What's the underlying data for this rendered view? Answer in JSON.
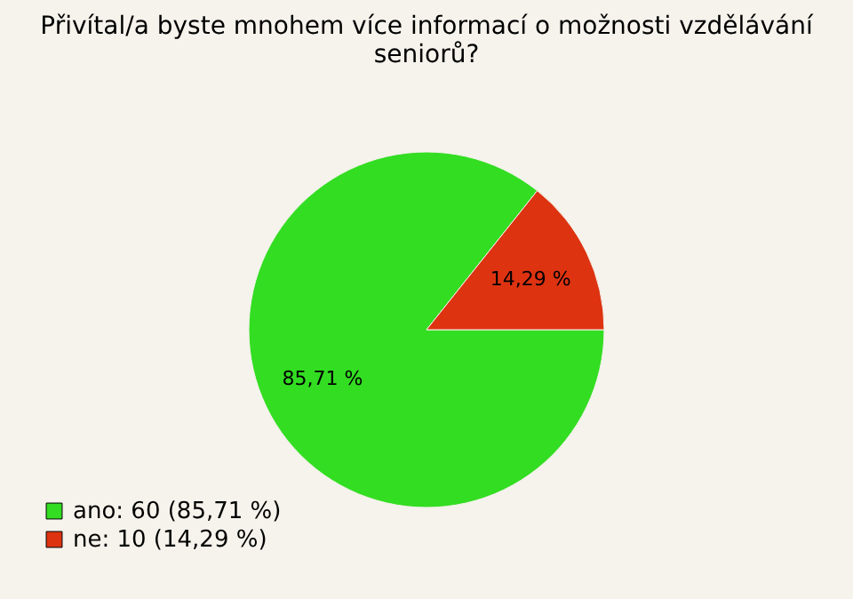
{
  "chart_data": {
    "type": "pie",
    "title": "Přivítal/a byste mnohem více informací o možnosti vzdělávání seniorů?",
    "categories": [
      "ano: 60 (85,71 %)",
      "ne: 10 (14,29 %)"
    ],
    "values": [
      85.71,
      14.29
    ],
    "colors": [
      "#33dd22",
      "#dd3311"
    ],
    "value_labels": [
      "85,71 %",
      "14,29 %"
    ],
    "legend": "bottom left"
  }
}
